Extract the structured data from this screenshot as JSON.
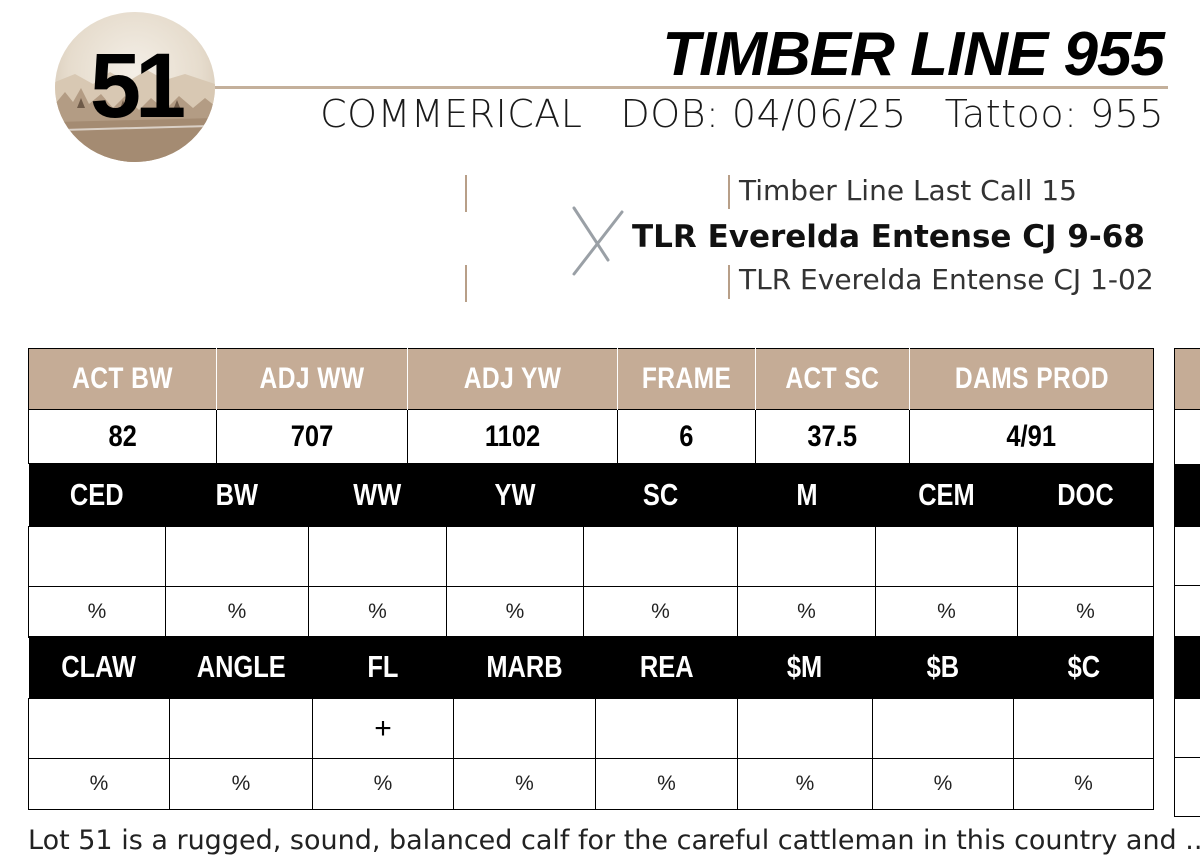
{
  "lot": {
    "number": "51"
  },
  "header": {
    "name": "TIMBER LINE 955",
    "type": "COMMERICAL",
    "dob": "DOB: 04/06/25",
    "tattoo": "Tattoo: 955"
  },
  "pedigree": {
    "sire": "Timber Line Last Call 15",
    "dam": "TLR Everelda Entense CJ 9-68",
    "maternal_grandsire": "TLR Everelda Entense CJ 1-02"
  },
  "stats": {
    "headers": [
      "ACT BW",
      "ADJ WW",
      "ADJ YW",
      "FRAME",
      "ACT SC",
      "DAMS PROD"
    ],
    "values": [
      "82",
      "707",
      "1102",
      "6",
      "37.5",
      "4/91"
    ]
  },
  "epd_row1": {
    "headers": [
      "CED",
      "BW",
      "WW",
      "YW",
      "SC",
      "M",
      "CEM",
      "DOC"
    ],
    "values": [
      "",
      "",
      "",
      "",
      "",
      "",
      "",
      ""
    ],
    "percents": [
      "%",
      "%",
      "%",
      "%",
      "%",
      "%",
      "%",
      "%"
    ]
  },
  "epd_row2": {
    "headers": [
      "CLAW",
      "ANGLE",
      "FL",
      "MARB",
      "REA",
      "$M",
      "$B",
      "$C"
    ],
    "values": [
      "",
      "",
      "+",
      "",
      "",
      "",
      "",
      ""
    ],
    "percents": [
      "%",
      "%",
      "%",
      "%",
      "%",
      "%",
      "%",
      "%"
    ]
  },
  "notes": {
    "text": "Lot 51 is a rugged, sound, balanced calf for the careful cattleman in this country and ..."
  },
  "colors": {
    "accent_tan": "#c5ac96",
    "rule": "#c4b09b",
    "black": "#000000"
  }
}
